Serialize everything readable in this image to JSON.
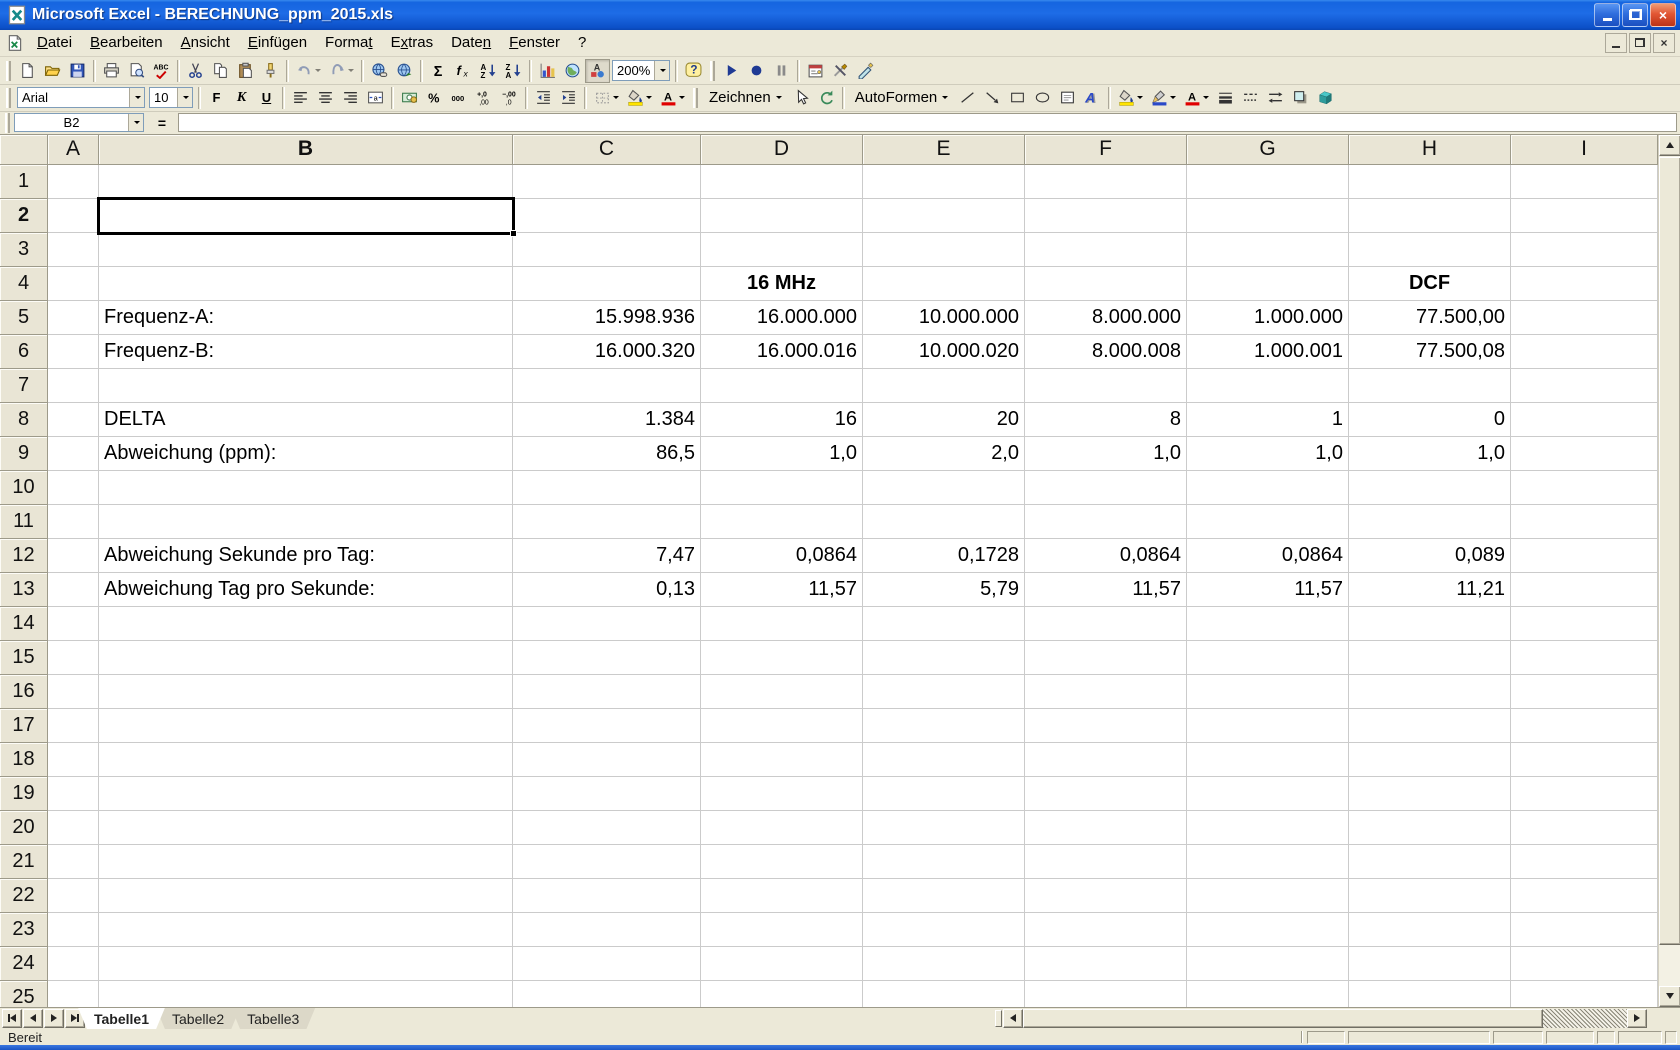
{
  "window": {
    "title": "Microsoft Excel - BERECHNUNG_ppm_2015.xls"
  },
  "menu_bar": {
    "items": [
      {
        "label": "Datei",
        "u": 0
      },
      {
        "label": "Bearbeiten",
        "u": 0
      },
      {
        "label": "Ansicht",
        "u": 0
      },
      {
        "label": "Einfügen",
        "u": 0
      },
      {
        "label": "Format",
        "u": 5
      },
      {
        "label": "Extras",
        "u": 1
      },
      {
        "label": "Daten",
        "u": 4
      },
      {
        "label": "Fenster",
        "u": 0
      },
      {
        "label": "?",
        "u": -1
      }
    ]
  },
  "standard_toolbar": {
    "zoom_value": "200%",
    "items": [
      {
        "kind": "btn",
        "name": "new-document-icon"
      },
      {
        "kind": "btn",
        "name": "open-folder-icon"
      },
      {
        "kind": "btn",
        "name": "save-icon"
      },
      {
        "kind": "sep"
      },
      {
        "kind": "btn",
        "name": "print-icon"
      },
      {
        "kind": "btn",
        "name": "print-preview-icon"
      },
      {
        "kind": "btn",
        "name": "spelling-icon"
      },
      {
        "kind": "sep"
      },
      {
        "kind": "btn",
        "name": "cut-icon"
      },
      {
        "kind": "btn",
        "name": "copy-icon"
      },
      {
        "kind": "btn",
        "name": "paste-icon"
      },
      {
        "kind": "btn",
        "name": "format-painter-icon"
      },
      {
        "kind": "sep"
      },
      {
        "kind": "dd",
        "name": "undo-icon",
        "disabled": true
      },
      {
        "kind": "dd",
        "name": "redo-icon",
        "disabled": true
      },
      {
        "kind": "sep"
      },
      {
        "kind": "btn",
        "name": "insert-hyperlink-icon"
      },
      {
        "kind": "btn",
        "name": "web-toolbar-icon"
      },
      {
        "kind": "sep"
      },
      {
        "kind": "btn",
        "name": "autosum-icon"
      },
      {
        "kind": "btn",
        "name": "paste-function-icon"
      },
      {
        "kind": "btn",
        "name": "sort-ascending-icon"
      },
      {
        "kind": "btn",
        "name": "sort-descending-icon"
      },
      {
        "kind": "sep"
      },
      {
        "kind": "btn",
        "name": "chart-wizard-icon"
      },
      {
        "kind": "btn",
        "name": "map-icon"
      },
      {
        "kind": "btn",
        "name": "drawing-toggle-icon",
        "pressed": true
      },
      {
        "kind": "zoom-combo",
        "name": "zoom-combo"
      },
      {
        "kind": "sep"
      },
      {
        "kind": "btn",
        "name": "help-icon"
      },
      {
        "kind": "grip"
      },
      {
        "kind": "btn",
        "name": "run-macro-icon"
      },
      {
        "kind": "btn",
        "name": "record-macro-icon"
      },
      {
        "kind": "btn",
        "name": "pause-macro-icon"
      },
      {
        "kind": "sep"
      },
      {
        "kind": "btn",
        "name": "control-toolbox-icon"
      },
      {
        "kind": "btn",
        "name": "vb-tools-icon"
      },
      {
        "kind": "btn",
        "name": "design-mode-icon"
      }
    ]
  },
  "formatting_toolbar": {
    "font_name": "Arial",
    "font_size": "10",
    "items": [
      {
        "kind": "combo",
        "name": "font-name-combo",
        "value": "Arial",
        "w": 128
      },
      {
        "kind": "combo",
        "name": "font-size-combo",
        "value": "10",
        "w": 44
      },
      {
        "kind": "sep"
      },
      {
        "kind": "btn",
        "name": "bold-button",
        "label": "F"
      },
      {
        "kind": "btn",
        "name": "italic-button",
        "label": "K"
      },
      {
        "kind": "btn",
        "name": "underline-button",
        "label": "U"
      },
      {
        "kind": "sep"
      },
      {
        "kind": "btn",
        "name": "align-left-icon"
      },
      {
        "kind": "btn",
        "name": "align-center-icon"
      },
      {
        "kind": "btn",
        "name": "align-right-icon"
      },
      {
        "kind": "btn",
        "name": "merge-center-icon"
      },
      {
        "kind": "sep"
      },
      {
        "kind": "btn",
        "name": "currency-icon"
      },
      {
        "kind": "btn",
        "name": "percent-icon"
      },
      {
        "kind": "btn",
        "name": "thousands-icon"
      },
      {
        "kind": "btn",
        "name": "increase-decimal-icon"
      },
      {
        "kind": "btn",
        "name": "decrease-decimal-icon"
      },
      {
        "kind": "sep"
      },
      {
        "kind": "btn",
        "name": "decrease-indent-icon"
      },
      {
        "kind": "btn",
        "name": "increase-indent-icon"
      },
      {
        "kind": "sep"
      },
      {
        "kind": "dd",
        "name": "borders-icon"
      },
      {
        "kind": "dd",
        "name": "fill-color-icon"
      },
      {
        "kind": "dd",
        "name": "font-color-icon"
      }
    ]
  },
  "drawing_toolbar": {
    "zeichnen_label": "Zeichnen",
    "autoformen_label": "AutoFormen",
    "items": [
      {
        "kind": "menu",
        "name": "zeichnen-menu",
        "label": "Zeichnen"
      },
      {
        "kind": "btn",
        "name": "select-pointer-icon"
      },
      {
        "kind": "btn",
        "name": "free-rotate-icon"
      },
      {
        "kind": "sep"
      },
      {
        "kind": "menu",
        "name": "autoformen-menu",
        "label": "AutoFormen"
      },
      {
        "kind": "btn",
        "name": "line-shape-icon"
      },
      {
        "kind": "btn",
        "name": "arrow-shape-icon"
      },
      {
        "kind": "btn",
        "name": "rectangle-shape-icon"
      },
      {
        "kind": "btn",
        "name": "oval-shape-icon"
      },
      {
        "kind": "btn",
        "name": "text-box-icon"
      },
      {
        "kind": "btn",
        "name": "wordart-icon"
      },
      {
        "kind": "sep"
      },
      {
        "kind": "dd",
        "name": "draw-fill-color-icon"
      },
      {
        "kind": "dd",
        "name": "draw-line-color-icon"
      },
      {
        "kind": "dd",
        "name": "draw-font-color-icon"
      },
      {
        "kind": "btn",
        "name": "line-style-icon"
      },
      {
        "kind": "btn",
        "name": "dash-style-icon"
      },
      {
        "kind": "btn",
        "name": "arrow-style-icon"
      },
      {
        "kind": "btn",
        "name": "shadow-icon"
      },
      {
        "kind": "btn",
        "name": "threed-icon"
      }
    ]
  },
  "formula_bar": {
    "name_box": "B2",
    "edit_formula_label": "=",
    "formula_value": ""
  },
  "grid": {
    "columns": [
      "A",
      "B",
      "C",
      "D",
      "E",
      "F",
      "G",
      "H",
      "I"
    ],
    "row_count": 25,
    "selected_cell": {
      "col": "B",
      "row": 2
    },
    "cells": {
      "D4": {
        "t": "16 MHz",
        "b": true,
        "a": "c"
      },
      "H4": {
        "t": "DCF",
        "b": true,
        "a": "c"
      },
      "B5": {
        "t": "Frequenz-A:"
      },
      "C5": {
        "t": "15.998.936",
        "a": "r"
      },
      "D5": {
        "t": "16.000.000",
        "a": "r"
      },
      "E5": {
        "t": "10.000.000",
        "a": "r"
      },
      "F5": {
        "t": "8.000.000",
        "a": "r"
      },
      "G5": {
        "t": "1.000.000",
        "a": "r"
      },
      "H5": {
        "t": "77.500,00",
        "a": "r"
      },
      "B6": {
        "t": "Frequenz-B:"
      },
      "C6": {
        "t": "16.000.320",
        "a": "r"
      },
      "D6": {
        "t": "16.000.016",
        "a": "r"
      },
      "E6": {
        "t": "10.000.020",
        "a": "r"
      },
      "F6": {
        "t": "8.000.008",
        "a": "r"
      },
      "G6": {
        "t": "1.000.001",
        "a": "r"
      },
      "H6": {
        "t": "77.500,08",
        "a": "r"
      },
      "B8": {
        "t": "DELTA"
      },
      "C8": {
        "t": "1.384",
        "a": "r"
      },
      "D8": {
        "t": "16",
        "a": "r"
      },
      "E8": {
        "t": "20",
        "a": "r"
      },
      "F8": {
        "t": "8",
        "a": "r"
      },
      "G8": {
        "t": "1",
        "a": "r"
      },
      "H8": {
        "t": "0",
        "a": "r"
      },
      "B9": {
        "t": "Abweichung (ppm):"
      },
      "C9": {
        "t": "86,5",
        "a": "r"
      },
      "D9": {
        "t": "1,0",
        "a": "r"
      },
      "E9": {
        "t": "2,0",
        "a": "r"
      },
      "F9": {
        "t": "1,0",
        "a": "r"
      },
      "G9": {
        "t": "1,0",
        "a": "r"
      },
      "H9": {
        "t": "1,0",
        "a": "r"
      },
      "B12": {
        "t": "Abweichung Sekunde pro Tag:"
      },
      "C12": {
        "t": "7,47",
        "a": "r"
      },
      "D12": {
        "t": "0,0864",
        "a": "r"
      },
      "E12": {
        "t": "0,1728",
        "a": "r"
      },
      "F12": {
        "t": "0,0864",
        "a": "r"
      },
      "G12": {
        "t": "0,0864",
        "a": "r"
      },
      "H12": {
        "t": "0,089",
        "a": "r"
      },
      "B13": {
        "t": "Abweichung Tag pro Sekunde:"
      },
      "C13": {
        "t": "0,13",
        "a": "r"
      },
      "D13": {
        "t": "11,57",
        "a": "r"
      },
      "E13": {
        "t": "5,79",
        "a": "r"
      },
      "F13": {
        "t": "11,57",
        "a": "r"
      },
      "G13": {
        "t": "11,57",
        "a": "r"
      },
      "H13": {
        "t": "11,21",
        "a": "r"
      }
    }
  },
  "sheet_tabs": {
    "tabs": [
      "Tabelle1",
      "Tabelle2",
      "Tabelle3"
    ],
    "active": "Tabelle1"
  },
  "status_bar": {
    "left_text": "Bereit"
  }
}
